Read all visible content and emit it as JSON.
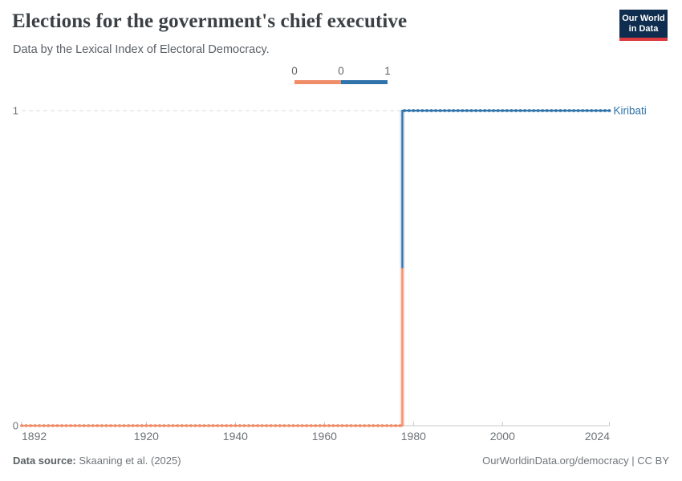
{
  "header": {
    "title": "Elections for the government's chief executive",
    "subtitle": "Data by the Lexical Index of Electoral Democracy.",
    "logo": {
      "line1": "Our World",
      "line2": "in Data",
      "bg_color": "#0F2E4F",
      "accent_color": "#DC3A3F"
    }
  },
  "legend": {
    "labels": [
      "0",
      "0",
      "1"
    ],
    "colors": [
      "#EF8E69",
      "#3173AB"
    ]
  },
  "chart_data": {
    "type": "line",
    "subtype": "step",
    "title": "Elections for the government's chief executive",
    "subtitle": "Data by the Lexical Index of Electoral Democracy.",
    "x_range": [
      1892,
      2024
    ],
    "y_range": [
      0,
      1
    ],
    "x_ticks": [
      "1892",
      "1920",
      "1940",
      "1960",
      "1980",
      "2000",
      "2024"
    ],
    "y_ticks": [
      "0",
      "1"
    ],
    "grid": "dashed horizontal gridline at y=1, solid axis at y=0",
    "legend_position": "top-center",
    "markers": "circle at every year",
    "step_change_year": 1978,
    "series": [
      {
        "name": "Kiribati",
        "label_color": "#3173AB",
        "segments": [
          {
            "value": 0,
            "start_year": 1892,
            "end_year": 1977,
            "color": "#EF8E69"
          },
          {
            "value": 1,
            "start_year": 1978,
            "end_year": 2024,
            "color": "#3173AB"
          }
        ]
      }
    ]
  },
  "footer": {
    "source_label": "Data source:",
    "source_value": "Skaaning et al. (2025)",
    "credit": "OurWorldinData.org/democracy | CC BY"
  }
}
